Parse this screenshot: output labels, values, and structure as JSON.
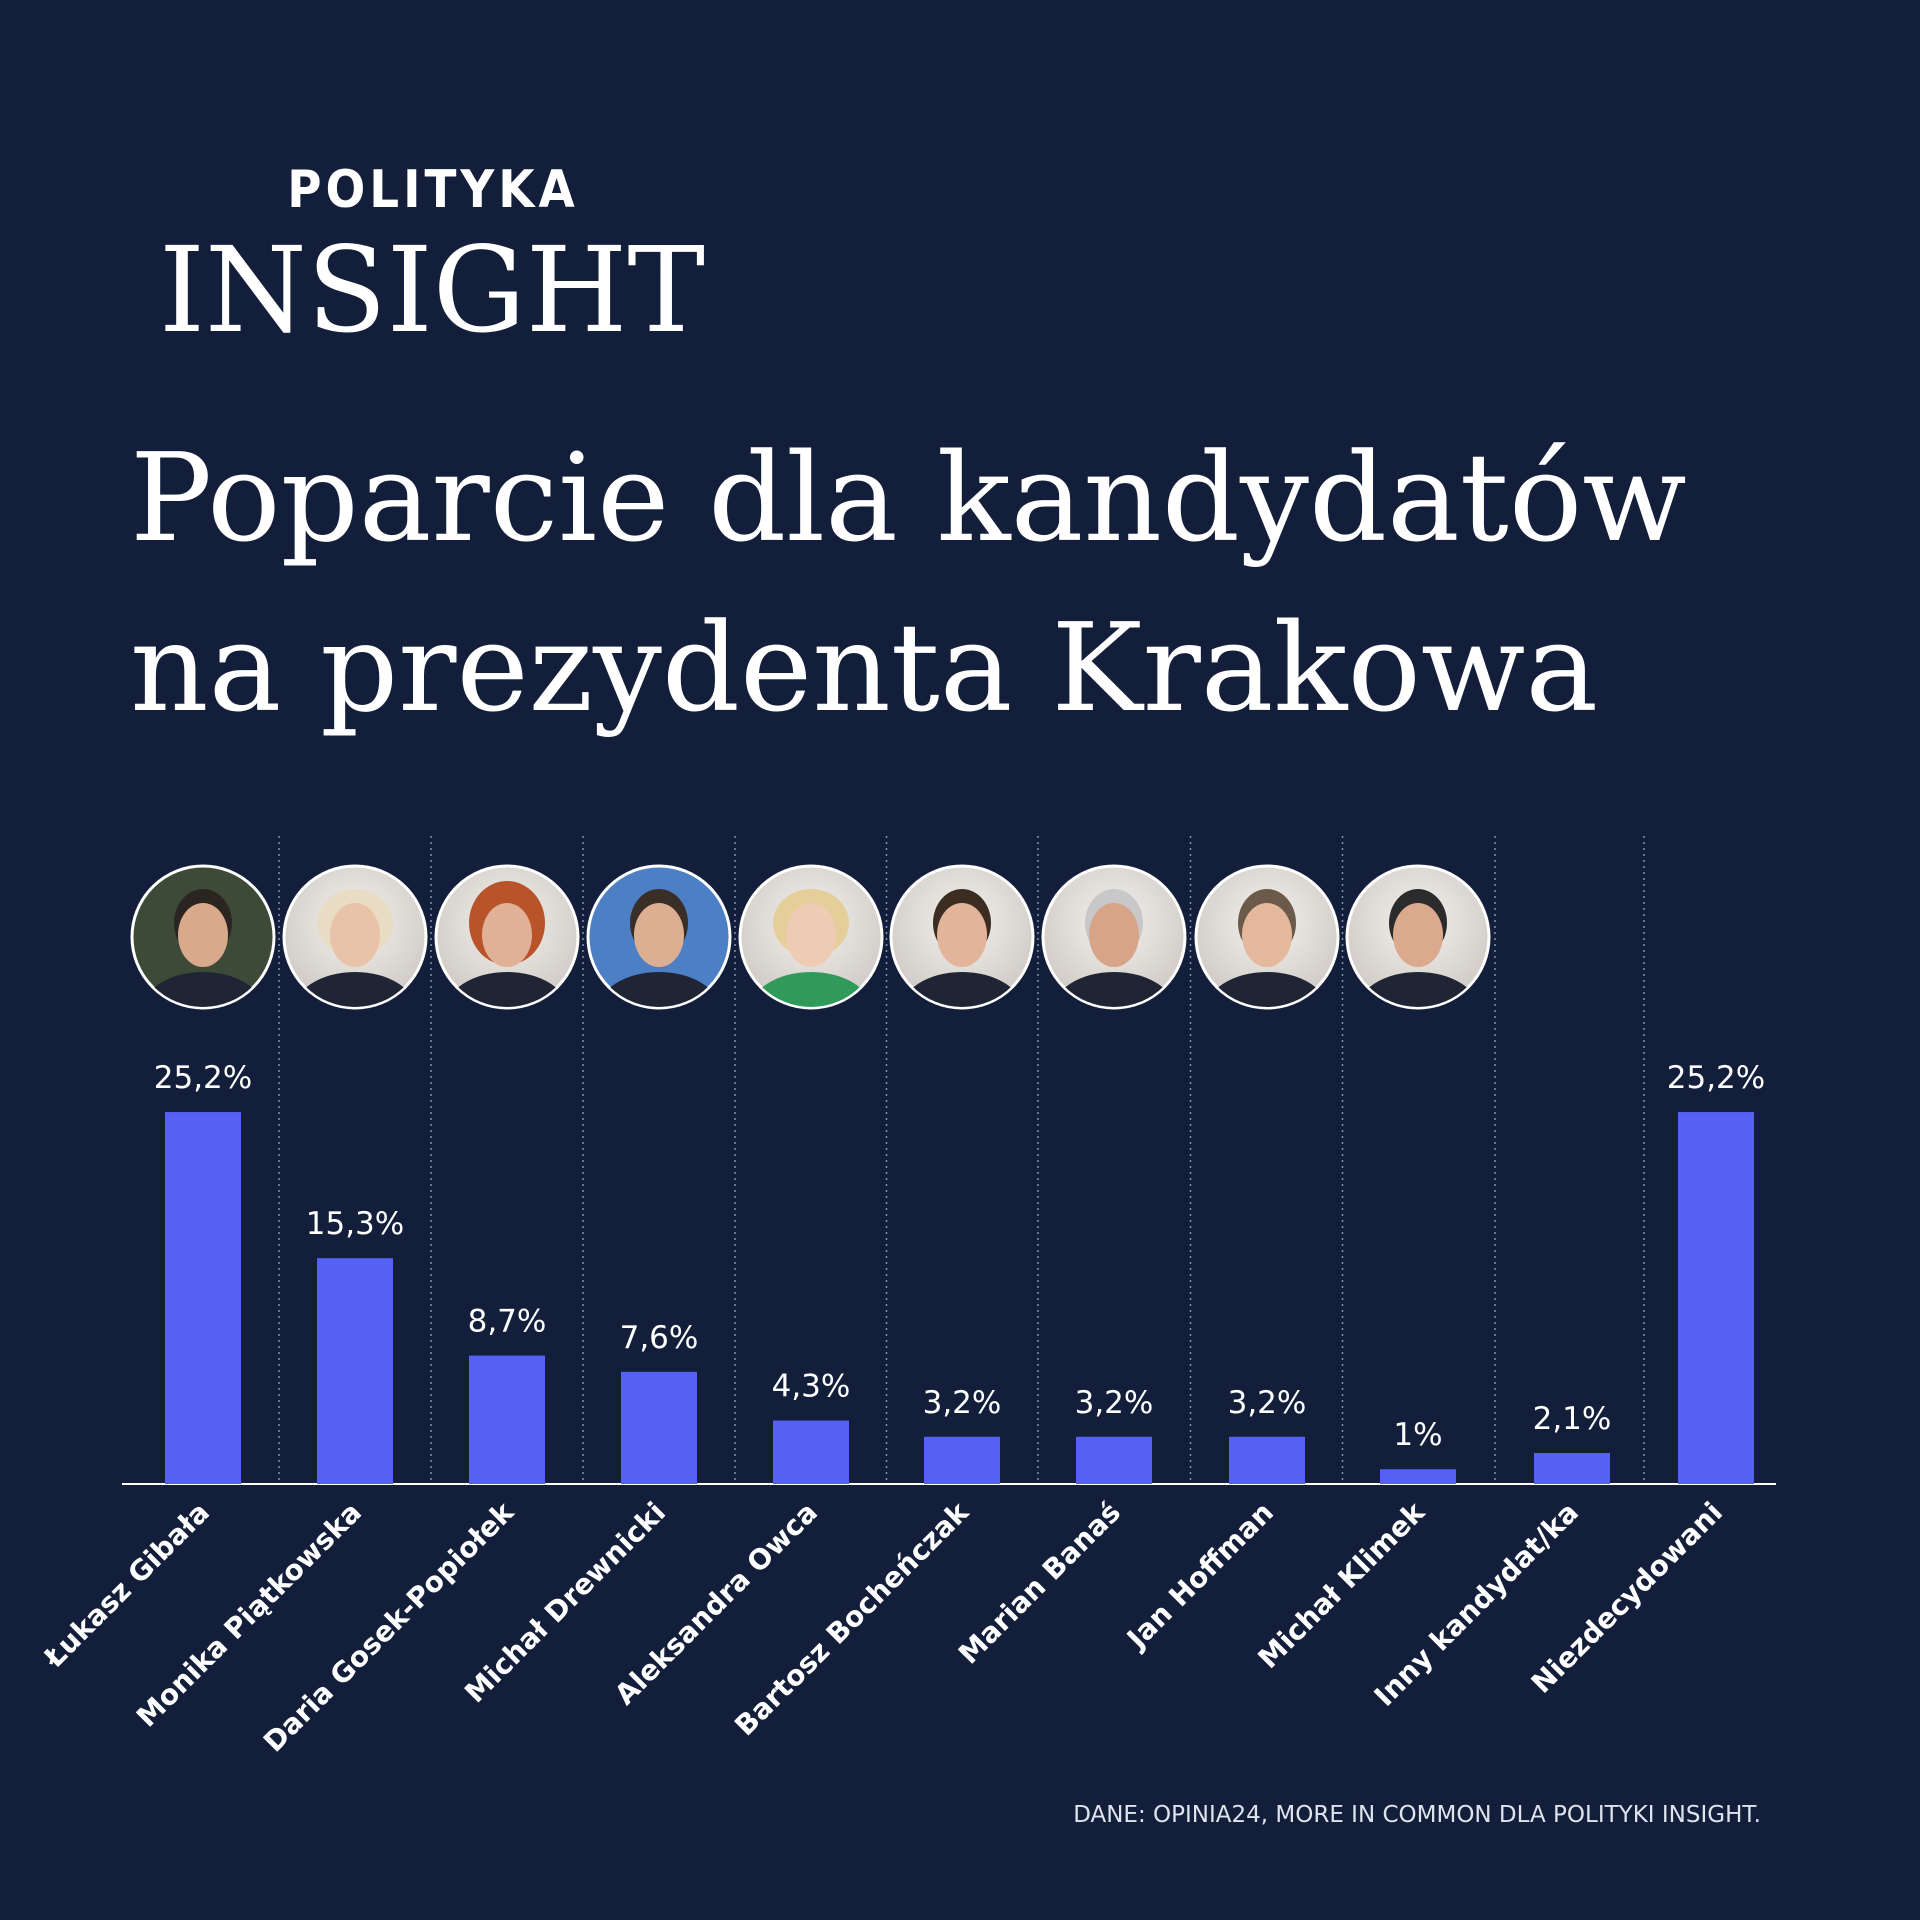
{
  "header": {
    "brand_top": "POLITYKA",
    "brand_main": "INSIGHT"
  },
  "chart_data": {
    "type": "bar",
    "title": [
      "Poparcie dla kandydatów",
      "na prezydenta Krakowa"
    ],
    "categories": [
      "Łukasz Gibała",
      "Monika Piątkowska",
      "Daria Gosek-Popiołek",
      "Michał Drewnicki",
      "Aleksandra Owca",
      "Bartosz Bocheńczak",
      "Marian Banaś",
      "Jan Hoffman",
      "Michał Klimek",
      "Inny kandydat/ka",
      "Niezdecydowani"
    ],
    "values": [
      25.2,
      15.3,
      8.7,
      7.6,
      4.3,
      3.2,
      3.2,
      3.2,
      1,
      2.1,
      25.2
    ],
    "value_labels": [
      "25,2%",
      "15,3%",
      "8,7%",
      "7,6%",
      "4,3%",
      "3,2%",
      "3,2%",
      "3,2%",
      "1%",
      "2,1%",
      "25,2%"
    ],
    "color": "#5560f4",
    "source": "DANE: OPINIA24, MORE IN COMMON DLA POLITYKI INSIGHT."
  }
}
